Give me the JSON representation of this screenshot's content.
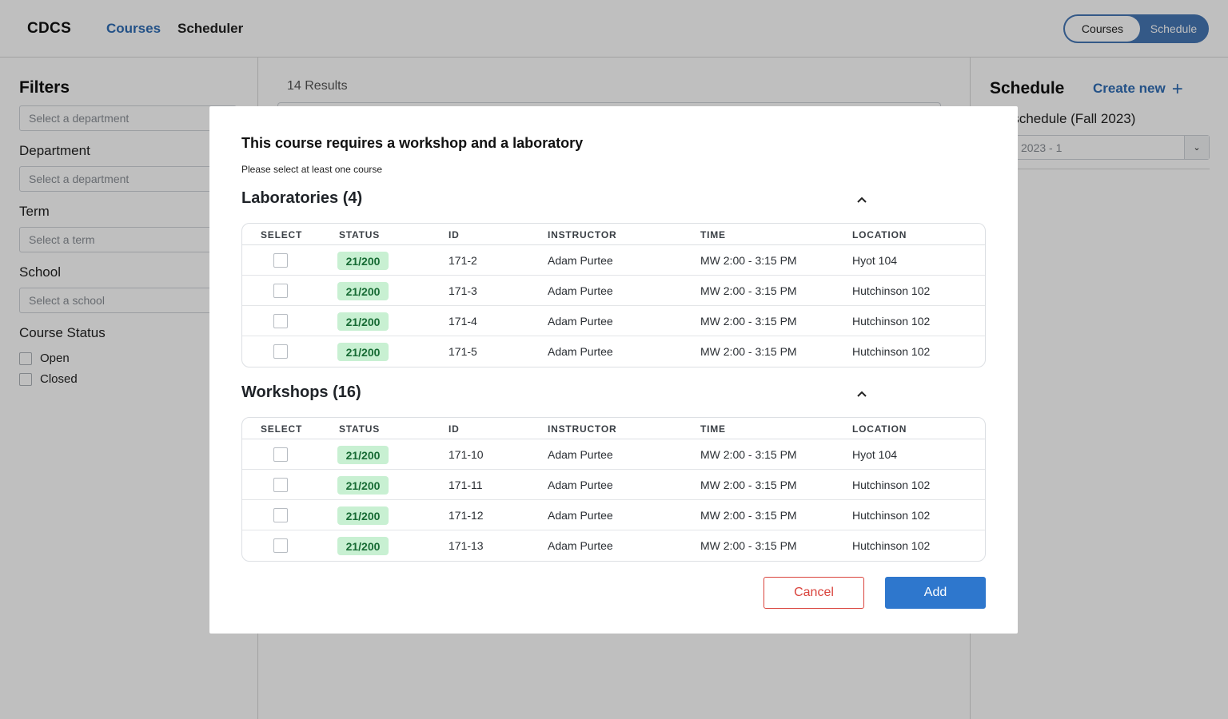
{
  "header": {
    "logo": "CDCS",
    "nav": [
      {
        "label": "Courses"
      },
      {
        "label": "Scheduler"
      }
    ],
    "view_toggle": {
      "active": "Courses",
      "inactive": "Schedule"
    }
  },
  "sidebar": {
    "title": "Filters",
    "search_placeholder": "Select a department",
    "department": {
      "label": "Department",
      "placeholder": "Select a department"
    },
    "term": {
      "label": "Term",
      "placeholder": "Select a term"
    },
    "school": {
      "label": "School",
      "placeholder": "Select a school"
    },
    "course_status": {
      "label": "Course Status",
      "options": [
        "Open",
        "Closed"
      ]
    }
  },
  "main": {
    "results": "14 Results"
  },
  "schedule_panel": {
    "title": "Schedule",
    "create_new": "Create new",
    "current_label": "ent schedule (Fall 2023)",
    "select_value": "2023 - 1"
  },
  "modal": {
    "title": "This course requires a workshop and a laboratory",
    "subtitle": "Please select at least one course",
    "columns": [
      "SELECT",
      "STATUS",
      "ID",
      "INSTRUCTOR",
      "TIME",
      "LOCATION"
    ],
    "sections": [
      {
        "title": "Laboratories (4)",
        "rows": [
          {
            "status": "21/200",
            "id": "171-2",
            "instructor": "Adam Purtee",
            "time": "MW 2:00 - 3:15 PM",
            "location": "Hyot 104"
          },
          {
            "status": "21/200",
            "id": "171-3",
            "instructor": "Adam Purtee",
            "time": "MW 2:00 - 3:15 PM",
            "location": "Hutchinson 102"
          },
          {
            "status": "21/200",
            "id": "171-4",
            "instructor": "Adam Purtee",
            "time": "MW 2:00 - 3:15 PM",
            "location": "Hutchinson 102"
          },
          {
            "status": "21/200",
            "id": "171-5",
            "instructor": "Adam Purtee",
            "time": "MW 2:00 - 3:15 PM",
            "location": "Hutchinson 102"
          }
        ]
      },
      {
        "title": "Workshops (16)",
        "rows": [
          {
            "status": "21/200",
            "id": "171-10",
            "instructor": "Adam Purtee",
            "time": "MW 2:00 - 3:15 PM",
            "location": "Hyot 104"
          },
          {
            "status": "21/200",
            "id": "171-11",
            "instructor": "Adam Purtee",
            "time": "MW 2:00 - 3:15 PM",
            "location": "Hutchinson 102"
          },
          {
            "status": "21/200",
            "id": "171-12",
            "instructor": "Adam Purtee",
            "time": "MW 2:00 - 3:15 PM",
            "location": "Hutchinson 102"
          },
          {
            "status": "21/200",
            "id": "171-13",
            "instructor": "Adam Purtee",
            "time": "MW 2:00 - 3:15 PM",
            "location": "Hutchinson 102"
          }
        ]
      }
    ],
    "cancel_label": "Cancel",
    "add_label": "Add"
  },
  "colors": {
    "accent": "#2e77cd",
    "danger": "#d9433c",
    "badge_bg": "#c8f0d2",
    "badge_text": "#176b34"
  }
}
